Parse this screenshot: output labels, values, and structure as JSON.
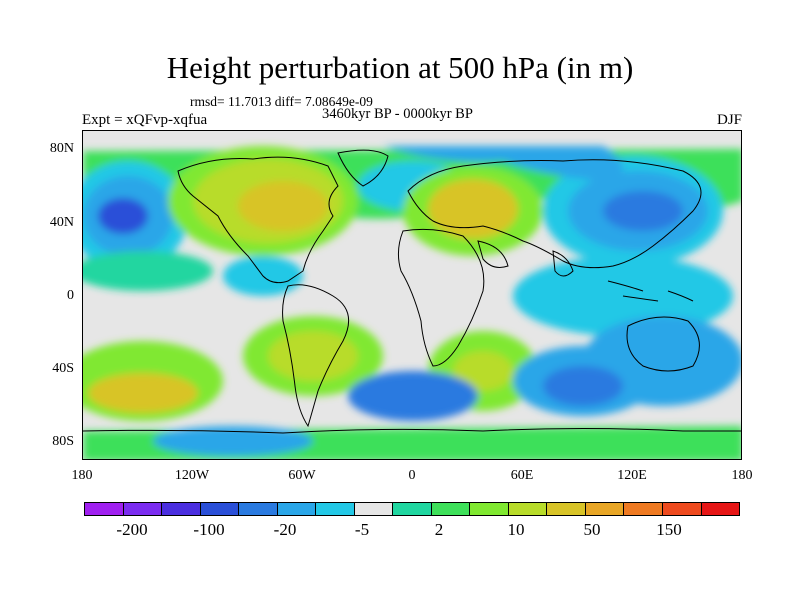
{
  "title": "Height perturbation at 500 hPa (in m)",
  "stats_line": "rmsd= 11.7013 diff= 7.08649e-09",
  "period_line": "3460kyr BP - 0000kyr BP",
  "experiment_label": "Expt = xQFvp-xqfua",
  "season_label": "DJF",
  "map": {
    "y_ticks": [
      "80N",
      "40N",
      "0",
      "40S",
      "80S"
    ],
    "x_ticks": [
      "180",
      "120W",
      "60W",
      "0",
      "60E",
      "120E",
      "180"
    ]
  },
  "colorbar": {
    "colors": [
      "#a020f0",
      "#7b2cf0",
      "#4b2fe0",
      "#2a4fd8",
      "#2a7ae0",
      "#2aa6e8",
      "#23c8e6",
      "#e6e6e6",
      "#20d6a0",
      "#3ee05a",
      "#80e830",
      "#b8dc2a",
      "#d8c428",
      "#e8a626",
      "#ef7a22",
      "#ee4a1e",
      "#e61616"
    ],
    "labels": [
      "-200",
      "-100",
      "-20",
      "-5",
      "2",
      "10",
      "50",
      "150"
    ]
  }
}
